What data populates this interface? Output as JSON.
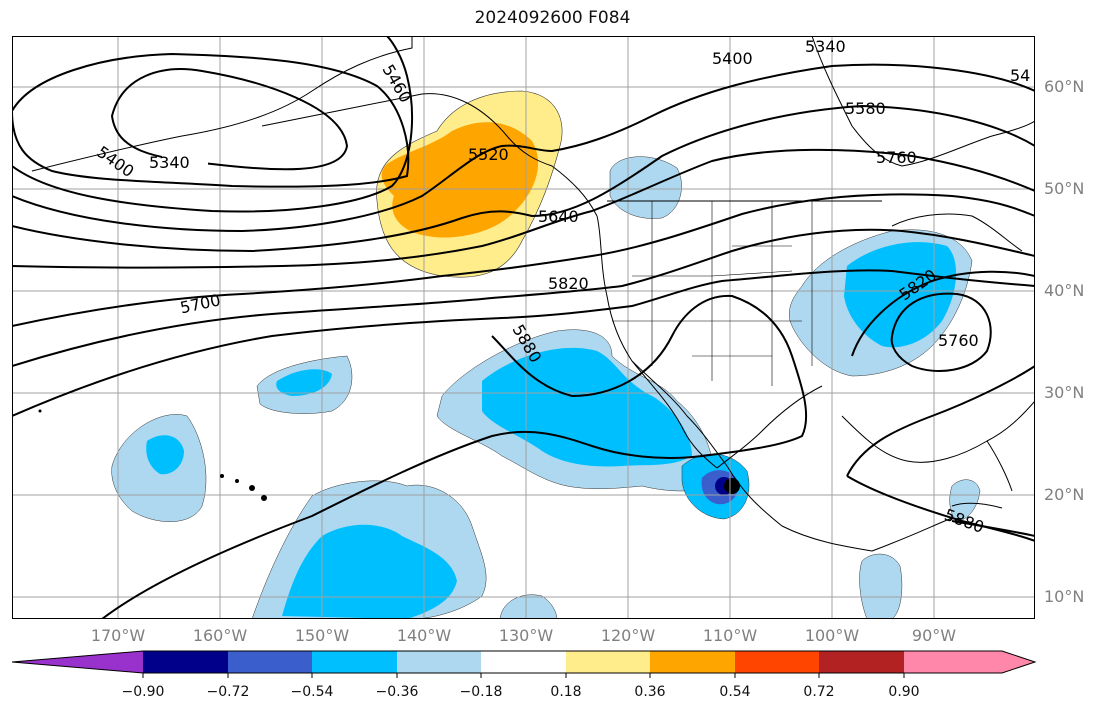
{
  "title": "2024092600 F084",
  "lon_ticks": [
    "170°W",
    "160°W",
    "150°W",
    "140°W",
    "130°W",
    "120°W",
    "110°W",
    "100°W",
    "90°W"
  ],
  "lat_ticks": [
    "60°N",
    "50°N",
    "40°N",
    "30°N",
    "20°N",
    "10°N"
  ],
  "contour_labels": [
    "5340",
    "5400",
    "5460",
    "5400",
    "5340",
    "5520",
    "5580",
    "5640",
    "5760",
    "5820",
    "5700",
    "5880",
    "5820",
    "5760",
    "5880",
    "54"
  ],
  "colorbar": {
    "tick_labels": [
      "−0.90",
      "−0.72",
      "−0.54",
      "−0.36",
      "−0.18",
      "0.18",
      "0.36",
      "0.54",
      "0.72",
      "0.90"
    ],
    "colors": [
      "#9932cc",
      "#00008b",
      "#3a5fcd",
      "#00bfff",
      "#add8f0",
      "#ffffff",
      "#ffec8b",
      "#ffa500",
      "#ff4500",
      "#b22222",
      "#ff88aa"
    ]
  },
  "colors": {
    "contour": "#000000",
    "grid": "#a0a0a0",
    "coast": "#000000"
  }
}
